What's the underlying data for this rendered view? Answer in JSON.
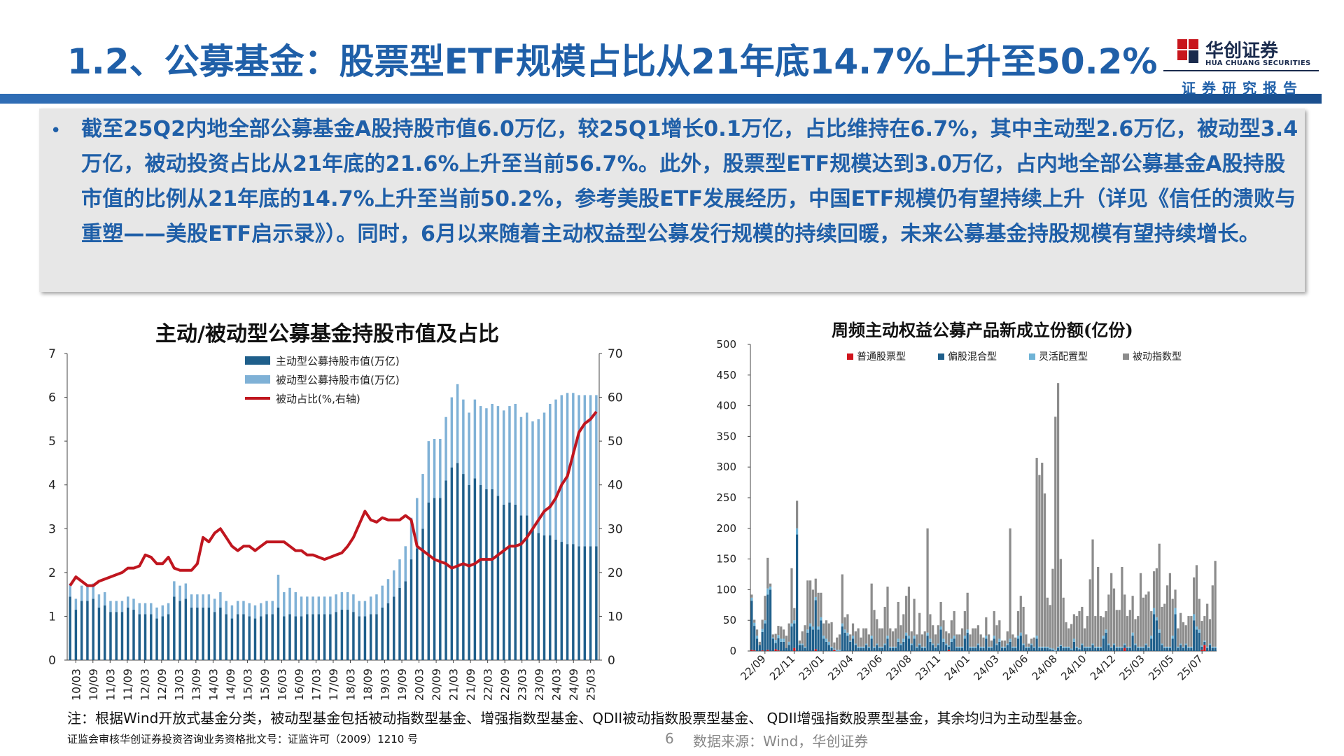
{
  "header": {
    "title": "1.2、公募基金：股票型ETF规模占比从21年底14.7%上升至50.2%",
    "logo_cn": "华创证券",
    "logo_en": "HUA CHUANG SECURITIES",
    "report_label": "证券研究报告"
  },
  "summary": {
    "bullet": "•",
    "text": "截至25Q2内地全部公募基金A股持股市值6.0万亿，较25Q1增长0.1万亿，占比维持在6.7%，其中主动型2.6万亿，被动型3.4万亿，被动投资占比从21年底的21.6%上升至当前56.7%。此外，股票型ETF规模达到3.0万亿，占内地全部公募基金A股持股市值的比例从21年底的14.7%上升至当前50.2%，参考美股ETF发展经历，中国ETF规模仍有望持续上升（详见《信任的溃败与重塑——美股ETF启示录》）。同时，6月以来随着主动权益型公募发行规模的持续回暖，未来公募基金持股规模有望持续增长。"
  },
  "colors": {
    "brand_blue": "#1f5fa8",
    "active": "#1f5f8b",
    "passive": "#7fb1d6",
    "ratio_line": "#c0161f",
    "normal_stock": "#d0141c",
    "partial_mixed": "#1f5f8b",
    "flexible": "#6fb3d6",
    "index": "#8c8c8c"
  },
  "chart_data": [
    {
      "type": "bar",
      "title": "主动/被动型公募基金持股市值及占比",
      "stacked": true,
      "legend_position": "top-right",
      "x_tick_labels": [
        "10/03",
        "10/09",
        "11/03",
        "11/09",
        "12/03",
        "12/09",
        "13/03",
        "13/09",
        "14/03",
        "14/09",
        "15/03",
        "15/09",
        "16/03",
        "16/09",
        "17/03",
        "17/09",
        "18/03",
        "18/09",
        "19/03",
        "19/09",
        "20/03",
        "20/09",
        "21/03",
        "21/09",
        "22/03",
        "22/09",
        "23/03",
        "23/09",
        "24/03",
        "24/09",
        "25/03"
      ],
      "ylim": [
        0,
        7
      ],
      "yticks": [
        0,
        1,
        2,
        3,
        4,
        5,
        6,
        7
      ],
      "y2lim": [
        0,
        70
      ],
      "y2ticks": [
        0,
        10,
        20,
        30,
        40,
        50,
        60,
        70
      ],
      "series": [
        {
          "name": "主动型公募持股市值(万亿)",
          "values": [
            1.45,
            1.15,
            1.35,
            1.35,
            1.4,
            1.2,
            1.25,
            1.1,
            1.1,
            1.1,
            1.2,
            1.15,
            1.05,
            1.05,
            1.05,
            0.95,
            1.0,
            1.05,
            1.45,
            1.35,
            1.4,
            1.2,
            1.2,
            1.2,
            1.2,
            1.1,
            1.2,
            1.05,
            0.95,
            1.05,
            1.05,
            1.0,
            0.95,
            1.0,
            1.05,
            1.05,
            1.2,
            1.0,
            1.05,
            1.0,
            1.0,
            1.05,
            1.05,
            1.05,
            1.05,
            1.05,
            1.1,
            1.15,
            1.15,
            1.1,
            1.0,
            1.0,
            1.05,
            1.05,
            1.2,
            1.3,
            1.45,
            1.65,
            1.8,
            2.3,
            2.55,
            3.0,
            3.6,
            3.7,
            3.7,
            4.1,
            4.4,
            4.5,
            4.25,
            4.0,
            4.15,
            4.0,
            3.9,
            3.9,
            3.75,
            3.55,
            3.6,
            3.55,
            3.3,
            3.3,
            3.0,
            2.9,
            2.85,
            2.85,
            2.75,
            2.7,
            2.65,
            2.65,
            2.6,
            2.6,
            2.6,
            2.6
          ]
        },
        {
          "name": "被动型公募持股市值(万亿)",
          "values": [
            0.3,
            0.25,
            0.35,
            0.35,
            0.35,
            0.3,
            0.3,
            0.25,
            0.25,
            0.25,
            0.25,
            0.25,
            0.25,
            0.25,
            0.25,
            0.25,
            0.25,
            0.25,
            0.35,
            0.35,
            0.35,
            0.3,
            0.3,
            0.3,
            0.3,
            0.3,
            0.35,
            0.3,
            0.3,
            0.3,
            0.3,
            0.3,
            0.3,
            0.3,
            0.3,
            0.3,
            0.75,
            0.55,
            0.6,
            0.55,
            0.45,
            0.4,
            0.4,
            0.4,
            0.4,
            0.4,
            0.4,
            0.4,
            0.4,
            0.4,
            0.35,
            0.35,
            0.4,
            0.45,
            0.5,
            0.55,
            0.6,
            0.65,
            0.8,
            0.95,
            1.15,
            1.25,
            1.4,
            1.35,
            1.35,
            1.45,
            1.6,
            1.8,
            1.7,
            1.65,
            1.8,
            1.8,
            1.85,
            1.95,
            2.05,
            2.15,
            2.2,
            2.3,
            2.25,
            2.35,
            2.45,
            2.6,
            2.8,
            3.0,
            3.2,
            3.35,
            3.45,
            3.45,
            3.45,
            3.45,
            3.45,
            3.45
          ]
        },
        {
          "name": "被动占比(%,右轴)",
          "axis": "right",
          "values": [
            17,
            19,
            18,
            17,
            17,
            18,
            18.5,
            19,
            19.5,
            20,
            21,
            21,
            21.5,
            24,
            23.5,
            22,
            22,
            23.5,
            21,
            20.5,
            20.5,
            20.5,
            22,
            28,
            27,
            29,
            30,
            28,
            26,
            25,
            26,
            26,
            25,
            26,
            27,
            27,
            27,
            27,
            26,
            25,
            25,
            24,
            24,
            23.5,
            23,
            23.5,
            24,
            24.5,
            26,
            28,
            31,
            34,
            32,
            31.5,
            32.5,
            32,
            32,
            32,
            33,
            32,
            26,
            25,
            24,
            23,
            22.5,
            22,
            21,
            21.5,
            22,
            21.5,
            22,
            23,
            23,
            23,
            24,
            25,
            26,
            26,
            26.5,
            28,
            30,
            32,
            34,
            35,
            37,
            40,
            42,
            47,
            52,
            54,
            55,
            56.7
          ]
        }
      ]
    },
    {
      "type": "bar",
      "title": "周频主动权益公募产品新成立份额(亿份)",
      "stacked": true,
      "legend_position": "top",
      "x_tick_labels": [
        "22/09",
        "22/11",
        "23/01",
        "23/04",
        "23/06",
        "23/08",
        "23/11",
        "24/01",
        "24/03",
        "24/06",
        "24/08",
        "24/10",
        "24/12",
        "25/03",
        "25/05",
        "25/07"
      ],
      "ylim": [
        0,
        500
      ],
      "yticks": [
        0,
        50,
        100,
        150,
        200,
        250,
        300,
        350,
        400,
        450,
        500
      ],
      "series": [
        {
          "name": "普通股票型",
          "values": [
            2,
            1,
            0,
            0,
            1,
            0,
            2,
            0,
            0,
            3,
            1,
            0,
            0,
            0,
            0,
            0,
            5,
            0,
            0,
            0,
            0,
            0,
            0,
            0,
            3,
            0,
            0,
            0,
            0,
            0,
            0,
            2,
            0,
            0,
            0,
            0,
            0,
            0,
            0,
            0,
            0,
            0,
            0,
            0,
            0,
            0,
            0,
            0,
            0,
            0,
            0,
            0,
            0,
            0,
            0,
            0,
            0,
            0,
            0,
            0,
            0,
            0,
            0,
            0,
            0,
            0,
            0,
            0,
            0,
            0,
            0,
            0,
            0,
            0,
            2,
            0,
            0,
            0,
            0,
            0,
            0,
            0,
            0,
            0,
            0,
            0,
            0,
            0,
            0,
            0,
            0,
            0,
            0,
            0,
            0,
            0,
            0,
            0,
            0,
            0,
            0,
            0,
            0,
            0,
            0,
            0,
            0,
            0,
            0,
            0,
            0,
            0,
            0,
            0,
            0,
            0,
            0,
            0,
            0,
            0,
            0,
            0,
            0,
            0,
            0,
            0,
            0,
            0,
            0,
            0,
            0,
            0,
            0,
            0,
            0,
            0,
            0,
            0,
            0,
            0,
            5,
            0,
            0,
            0,
            0,
            0,
            0,
            0,
            0,
            0,
            0,
            0,
            0,
            0,
            0,
            0,
            0,
            0,
            0,
            0,
            0,
            0,
            0,
            0,
            0,
            0,
            0,
            0,
            0,
            2,
            10,
            0,
            0,
            0,
            0
          ]
        },
        {
          "name": "偏股混合型",
          "values": [
            80,
            40,
            20,
            10,
            30,
            45,
            90,
            100,
            20,
            10,
            20,
            15,
            15,
            5,
            10,
            40,
            40,
            190,
            10,
            10,
            5,
            30,
            40,
            35,
            80,
            35,
            50,
            20,
            15,
            10,
            5,
            0,
            0,
            0,
            40,
            30,
            25,
            15,
            20,
            10,
            5,
            5,
            5,
            10,
            5,
            20,
            5,
            10,
            5,
            5,
            10,
            20,
            5,
            5,
            5,
            15,
            10,
            15,
            25,
            20,
            10,
            20,
            5,
            10,
            5,
            5,
            25,
            15,
            10,
            5,
            10,
            35,
            15,
            10,
            5,
            15,
            20,
            5,
            5,
            5,
            20,
            30,
            5,
            5,
            5,
            10,
            5,
            5,
            20,
            5,
            5,
            20,
            10,
            15,
            5,
            5,
            10,
            15,
            5,
            5,
            20,
            25,
            10,
            5,
            5,
            10,
            5,
            20,
            5,
            5,
            5,
            5,
            3,
            2,
            0,
            5,
            8,
            5,
            5,
            5,
            2,
            15,
            5,
            3,
            10,
            5,
            5,
            5,
            10,
            5,
            5,
            5,
            20,
            30,
            10,
            5,
            10,
            5,
            5,
            5,
            5,
            5,
            5,
            25,
            10,
            5,
            5,
            5,
            10,
            5,
            20,
            60,
            50,
            30,
            10,
            5,
            5,
            5,
            20,
            60,
            5,
            10,
            5,
            10,
            5,
            5,
            50,
            35,
            30,
            5,
            5,
            5,
            10,
            5,
            5
          ]
        },
        {
          "name": "灵活配置型",
          "values": [
            5,
            5,
            5,
            0,
            5,
            5,
            10,
            5,
            2,
            5,
            5,
            5,
            5,
            0,
            5,
            5,
            5,
            10,
            2,
            2,
            2,
            5,
            5,
            5,
            5,
            5,
            5,
            5,
            5,
            5,
            2,
            2,
            2,
            2,
            5,
            5,
            5,
            2,
            5,
            2,
            2,
            2,
            2,
            2,
            2,
            5,
            2,
            2,
            2,
            2,
            2,
            5,
            2,
            2,
            2,
            5,
            2,
            5,
            5,
            5,
            2,
            5,
            2,
            2,
            2,
            2,
            5,
            5,
            2,
            2,
            2,
            5,
            5,
            2,
            2,
            5,
            5,
            2,
            2,
            2,
            5,
            5,
            2,
            2,
            2,
            2,
            2,
            2,
            5,
            2,
            2,
            5,
            2,
            5,
            2,
            2,
            2,
            5,
            2,
            2,
            5,
            5,
            2,
            2,
            2,
            2,
            2,
            5,
            2,
            2,
            2,
            2,
            2,
            2,
            2,
            2,
            2,
            2,
            2,
            2,
            2,
            5,
            2,
            2,
            2,
            2,
            2,
            2,
            2,
            2,
            2,
            2,
            5,
            5,
            2,
            2,
            2,
            2,
            2,
            2,
            2,
            2,
            2,
            5,
            2,
            2,
            2,
            2,
            2,
            2,
            5,
            10,
            5,
            5,
            2,
            2,
            2,
            2,
            5,
            10,
            2,
            2,
            2,
            2,
            2,
            2,
            10,
            5,
            5,
            2,
            2,
            2,
            2,
            2,
            2
          ]
        },
        {
          "name": "被动指数型",
          "values": [
            5,
            5,
            10,
            5,
            15,
            40,
            50,
            5,
            5,
            10,
            15,
            20,
            15,
            20,
            30,
            90,
            20,
            45,
            5,
            20,
            35,
            80,
            70,
            60,
            30,
            55,
            40,
            20,
            30,
            30,
            40,
            10,
            20,
            25,
            80,
            20,
            30,
            10,
            20,
            20,
            30,
            15,
            30,
            25,
            20,
            85,
            60,
            40,
            30,
            30,
            60,
            80,
            30,
            25,
            30,
            60,
            30,
            40,
            60,
            80,
            20,
            60,
            20,
            50,
            20,
            25,
            170,
            40,
            30,
            20,
            30,
            40,
            30,
            20,
            20,
            30,
            40,
            20,
            20,
            30,
            40,
            60,
            20,
            30,
            30,
            30,
            20,
            15,
            30,
            20,
            10,
            40,
            30,
            30,
            10,
            10,
            20,
            180,
            20,
            15,
            40,
            60,
            60,
            20,
            5,
            8,
            15,
            290,
            280,
            300,
            250,
            80,
            70,
            130,
            380,
            430,
            140,
            80,
            40,
            30,
            40,
            40,
            50,
            60,
            60,
            30,
            50,
            110,
            170,
            50,
            130,
            50,
            30,
            30,
            80,
            120,
            90,
            60,
            60,
            130,
            80,
            50,
            60,
            60,
            40,
            50,
            120,
            80,
            80,
            90,
            40,
            60,
            80,
            140,
            60,
            70,
            100,
            120,
            60,
            30,
            30,
            50,
            40,
            30,
            50,
            50,
            60,
            100,
            50,
            40,
            40,
            70,
            40,
            100,
            140,
            80
          ]
        }
      ]
    }
  ],
  "footer": {
    "note": "注：根据Wind开放式基金分类，被动型基金包括被动指数型基金、增强指数型基金、QDII被动指数股票型基金、 QDII增强指数股票型基金，其余均归为主动型基金。",
    "license": "证监会审核华创证券投资咨询业务资格批文号：证监许可（2009）1210 号",
    "page_number": "6",
    "source": "数据来源：Wind，华创证券"
  }
}
